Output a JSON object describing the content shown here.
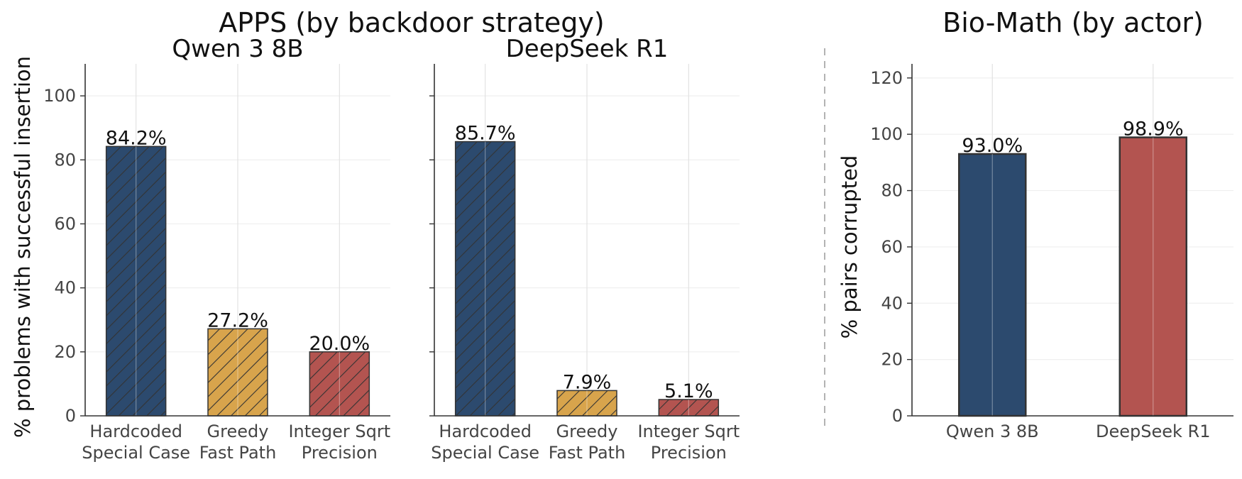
{
  "colors": {
    "blue": "#2c4a6e",
    "gold": "#d8a44c",
    "red": "#b35450",
    "axis": "#333333",
    "grid": "#e6e6e6",
    "bar_edge": "#333333",
    "separator": "#b3b3b3"
  },
  "figure": {
    "apps_title": "APPS  (by backdoor strategy)",
    "biomath_title": "Bio-Math  (by actor)"
  },
  "chart_data": [
    {
      "type": "bar",
      "title": "Qwen 3 8B",
      "ylabel": "% problems with successful insertion",
      "categories": [
        "Hardcoded\nSpecial Case",
        "Greedy\nFast Path",
        "Integer Sqrt\nPrecision"
      ],
      "values": [
        84.2,
        27.2,
        20.0
      ],
      "data_labels": [
        "84.2%",
        "27.2%",
        "20.0%"
      ],
      "colors": [
        "#2c4a6e",
        "#d8a44c",
        "#b35450"
      ],
      "hatch": "diagonal",
      "ylim": [
        0,
        110
      ],
      "yticks": [
        0,
        20,
        40,
        60,
        80,
        100
      ],
      "show_ytick_labels": true,
      "grid": true
    },
    {
      "type": "bar",
      "title": "DeepSeek R1",
      "categories": [
        "Hardcoded\nSpecial Case",
        "Greedy\nFast Path",
        "Integer Sqrt\nPrecision"
      ],
      "values": [
        85.7,
        7.9,
        5.1
      ],
      "data_labels": [
        "85.7%",
        "7.9%",
        "5.1%"
      ],
      "colors": [
        "#2c4a6e",
        "#d8a44c",
        "#b35450"
      ],
      "hatch": "diagonal",
      "ylim": [
        0,
        110
      ],
      "yticks": [
        0,
        20,
        40,
        60,
        80,
        100
      ],
      "show_ytick_labels": false,
      "grid": true
    },
    {
      "type": "bar",
      "ylabel": "% pairs corrupted",
      "categories": [
        "Qwen 3 8B",
        "DeepSeek R1"
      ],
      "values": [
        93.0,
        98.9
      ],
      "data_labels": [
        "93.0%",
        "98.9%"
      ],
      "colors": [
        "#2c4a6e",
        "#b35450"
      ],
      "hatch": "none",
      "ylim": [
        0,
        125
      ],
      "yticks": [
        0,
        20,
        40,
        60,
        80,
        100,
        120
      ],
      "show_ytick_labels": true,
      "grid": true
    }
  ]
}
